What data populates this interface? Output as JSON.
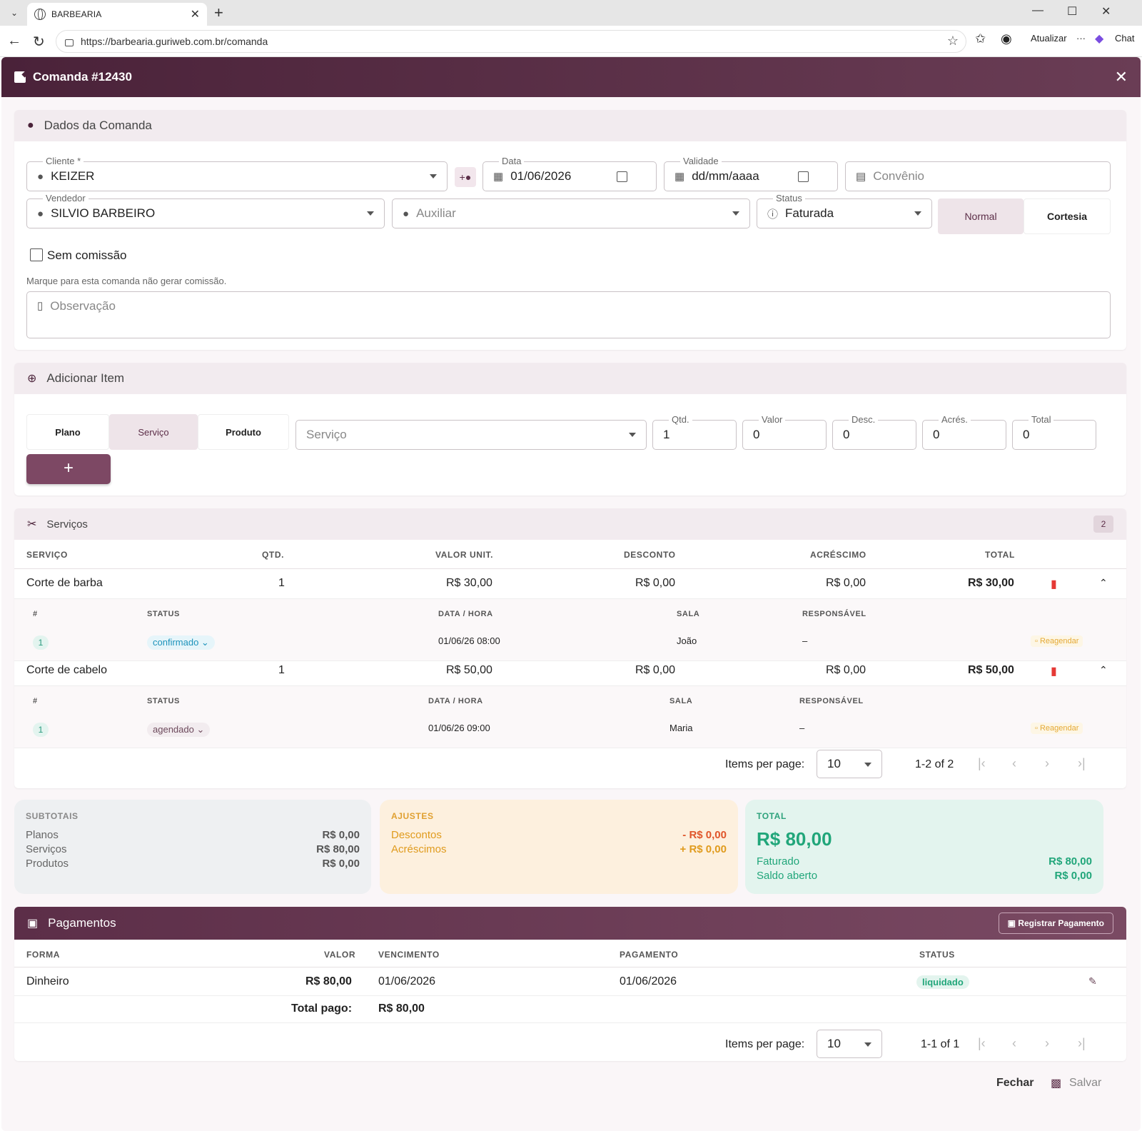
{
  "browser": {
    "tab_title": "BARBEARIA",
    "url": "https://barbearia.guriweb.com.br/comanda",
    "update_label": "Atualizar",
    "chat_label": "Chat"
  },
  "dialog": {
    "title": "Comanda #12430",
    "close_label": "✕"
  },
  "dados": {
    "title": "Dados da Comanda",
    "cliente_label": "Cliente *",
    "cliente_value": "KEIZER",
    "data_label": "Data",
    "data_value": "01/06/2026",
    "validade_label": "Validade",
    "validade_placeholder": "dd/mm/aaaa",
    "convenio_placeholder": "Convênio",
    "vendedor_label": "Vendedor",
    "vendedor_value": "SILVIO BARBEIRO",
    "auxiliar_placeholder": "Auxiliar",
    "status_label": "Status",
    "status_value": "Faturada",
    "tipo_normal": "Normal",
    "tipo_cortesia": "Cortesia",
    "sem_comissao_label": "Sem comissão",
    "sem_comissao_hint": "Marque para esta comanda não gerar comissão.",
    "observacao_placeholder": "Observação"
  },
  "adicionar": {
    "title": "Adicionar Item",
    "tab_plano": "Plano",
    "tab_servico": "Serviço",
    "tab_produto": "Produto",
    "servico_placeholder": "Serviço",
    "qtd_label": "Qtd.",
    "qtd_value": "1",
    "valor_label": "Valor",
    "valor_value": "0",
    "desc_label": "Desc.",
    "desc_value": "0",
    "acres_label": "Acrés.",
    "acres_value": "0",
    "total_label": "Total",
    "total_value": "0",
    "add_button": "+"
  },
  "servicos": {
    "title": "Serviços",
    "count": "2",
    "headers": [
      "SERVIÇO",
      "QTD.",
      "VALOR UNIT.",
      "DESCONTO",
      "ACRÉSCIMO",
      "TOTAL"
    ],
    "sub_headers": [
      "#",
      "STATUS",
      "DATA / HORA",
      "SALA",
      "RESPONSÁVEL"
    ],
    "reagendar_label": "Reagendar",
    "items": [
      {
        "name": "Corte de barba",
        "qtd": "1",
        "valor": "R$ 30,00",
        "desconto": "R$ 0,00",
        "acrescimo": "R$ 0,00",
        "total": "R$ 30,00",
        "sub": {
          "num": "1",
          "status": "confirmado",
          "datahora": "01/06/26 08:00",
          "sala": "João",
          "responsavel": "–"
        }
      },
      {
        "name": "Corte de cabelo",
        "qtd": "1",
        "valor": "R$ 50,00",
        "desconto": "R$ 0,00",
        "acrescimo": "R$ 0,00",
        "total": "R$ 50,00",
        "sub": {
          "num": "1",
          "status": "agendado",
          "datahora": "01/06/26 09:00",
          "sala": "Maria",
          "responsavel": "–"
        }
      }
    ],
    "items_per_page_label": "Items per page:",
    "items_per_page": "10",
    "range": "1-2 of 2"
  },
  "subtotais": {
    "title": "SUBTOTAIS",
    "rows": [
      {
        "label": "Planos",
        "value": "R$ 0,00"
      },
      {
        "label": "Serviços",
        "value": "R$ 80,00"
      },
      {
        "label": "Produtos",
        "value": "R$ 0,00"
      }
    ]
  },
  "ajustes": {
    "title": "AJUSTES",
    "rows": [
      {
        "label": "Descontos",
        "value": "- R$ 0,00"
      },
      {
        "label": "Acréscimos",
        "value": "+ R$ 0,00"
      }
    ]
  },
  "total": {
    "title": "TOTAL",
    "value": "R$ 80,00",
    "rows": [
      {
        "label": "Faturado",
        "value": "R$ 80,00"
      },
      {
        "label": "Saldo aberto",
        "value": "R$ 0,00"
      }
    ]
  },
  "pagamentos": {
    "title": "Pagamentos",
    "registrar_label": "Registrar Pagamento",
    "headers": [
      "FORMA",
      "VALOR",
      "VENCIMENTO",
      "PAGAMENTO",
      "STATUS"
    ],
    "rows": [
      {
        "forma": "Dinheiro",
        "valor": "R$ 80,00",
        "vencimento": "01/06/2026",
        "pagamento": "01/06/2026",
        "status": "liquidado"
      }
    ],
    "total_pago_label": "Total pago:",
    "total_pago_value": "R$ 80,00",
    "items_per_page_label": "Items per page:",
    "items_per_page": "10",
    "range": "1-1 of 1"
  },
  "footer": {
    "fechar_label": "Fechar",
    "salvar_label": "Salvar"
  },
  "colors": {
    "brand": "#5c2e48",
    "accent_soft": "#f2ebef",
    "success": "#21a67a",
    "warning": "#e09b1d",
    "danger": "#e53935"
  }
}
